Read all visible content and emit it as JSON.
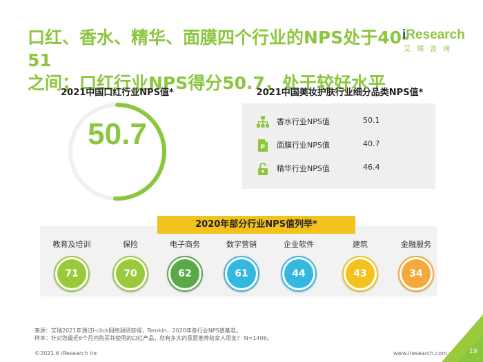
{
  "header": {
    "title_line1": "口红、香水、精华、面膜四个行业的NPS处于40-51",
    "title_line2": "之间；口红行业NPS得分50.7，处于较好水平"
  },
  "logo": {
    "brand_i": "i",
    "brand_rest": "Research",
    "chinese": "艾瑞咨询"
  },
  "lipstick": {
    "title": "2021中国口红行业NPS值*",
    "value": "50.7",
    "value_num": 50.7,
    "scale_max": 100
  },
  "beauty": {
    "title": "2021中国美妆护肤行业细分品类NPS值*",
    "items": [
      {
        "icon": "org-chart-icon",
        "label": "香水行业NPS值",
        "value": "50.1"
      },
      {
        "icon": "document-p-icon",
        "label": "面膜行业NPS值",
        "value": "40.7"
      },
      {
        "icon": "lock-icon",
        "label": "精华行业NPS值",
        "value": "46.4"
      }
    ]
  },
  "industries": {
    "title": "2020年部分行业NPS值列举*",
    "items": [
      {
        "label": "教育及培训",
        "value": "71",
        "color": "#9aca3c"
      },
      {
        "label": "保险",
        "value": "70",
        "color": "#9aca3c"
      },
      {
        "label": "电子商务",
        "value": "62",
        "color": "#5aa84a"
      },
      {
        "label": "数字营销",
        "value": "61",
        "color": "#35b8e0"
      },
      {
        "label": "企业软件",
        "value": "44",
        "color": "#35b8e0"
      },
      {
        "label": "建筑",
        "value": "43",
        "color": "#f4c21c"
      },
      {
        "label": "金融服务",
        "value": "34",
        "color": "#f4a93a"
      }
    ]
  },
  "footer": {
    "source": "来源：艾瑞2021年通过i-click网络调研获得，Temkin，2020年各行业NPS值基准。",
    "sample": "样本：针对您最近6个月内购买并使用的口红产品，您有多大的意愿推荐给家人朋友？ N=1406。",
    "copyright": "©2021.6 iResearch Inc",
    "site": "www.iresearch.com.cn",
    "page": "19"
  },
  "colors": {
    "accent": "#8cc63f",
    "banner": "#f4c21c",
    "panel": "#efefef"
  }
}
